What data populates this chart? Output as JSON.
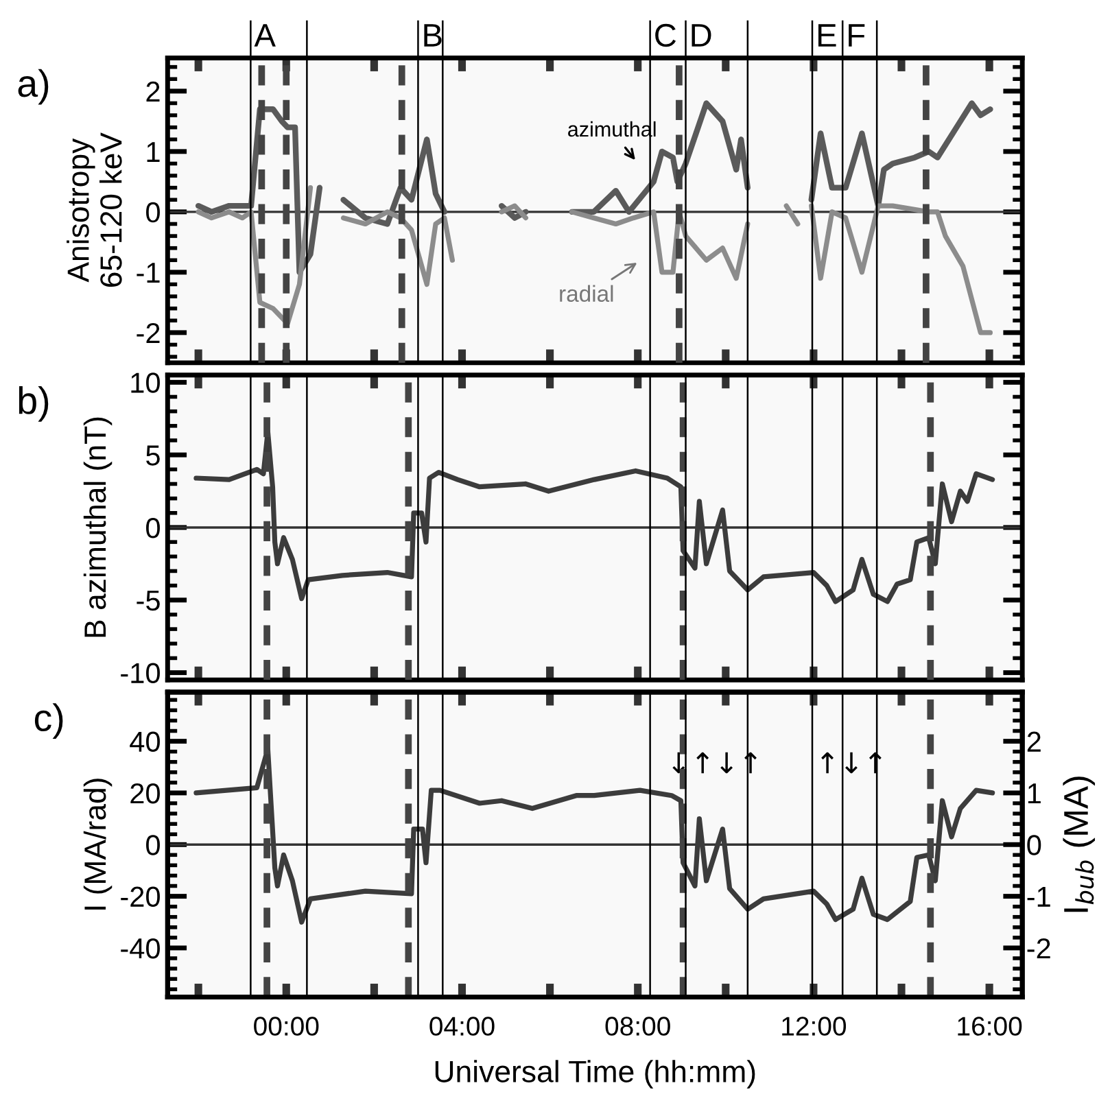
{
  "chart_data": [
    {
      "type": "line",
      "ylabel": "Anisotropy\n65-120 keV",
      "xlim": [
        -2.7,
        16.75
      ],
      "ylim": [
        -2.5,
        2.55
      ],
      "tick_labels": "y",
      "xticks": [
        {
          "value": -2,
          "label": null
        },
        {
          "value": 0,
          "label": null
        },
        {
          "value": 2,
          "label": null
        },
        {
          "value": 4,
          "label": null
        },
        {
          "value": 6,
          "label": null
        },
        {
          "value": 8,
          "label": null
        },
        {
          "value": 10,
          "label": null
        },
        {
          "value": 12,
          "label": null
        },
        {
          "value": 14,
          "label": null
        },
        {
          "value": 16,
          "label": null
        }
      ],
      "yticks": [
        -2,
        -1,
        0,
        1,
        2
      ],
      "series": [
        {
          "color": "#5a5a5a",
          "x": [
            -2.0,
            -1.7,
            -1.3,
            -1.0,
            -0.8,
            -0.6,
            -0.3,
            -0.1,
            0.03,
            0.2,
            0.3,
            0.55,
            0.76,
            1.0,
            1.3,
            1.8,
            2.3,
            2.6,
            2.85,
            3.2,
            3.4,
            3.6,
            4.2,
            4.9,
            5.2,
            5.45,
            6.0,
            6.5,
            7.0,
            7.5,
            7.8,
            8.36,
            8.55,
            8.8,
            8.9,
            9.09,
            9.56,
            9.93,
            10.24,
            10.35,
            10.5,
            11.2,
            11.95,
            12.16,
            12.42,
            12.73,
            13.1,
            13.47,
            13.6,
            13.8,
            14.3,
            14.62,
            14.82,
            15.34,
            15.6,
            15.8,
            16.02
          ],
          "values": [
            0.1,
            0.0,
            0.1,
            0.1,
            0.1,
            1.7,
            1.7,
            1.5,
            1.4,
            1.4,
            -1.0,
            -0.7,
            0.4,
            null,
            0.2,
            -0.1,
            -0.2,
            0.4,
            0.2,
            1.2,
            0.3,
            0.0,
            null,
            0.1,
            -0.1,
            0.0,
            null,
            0.0,
            0.0,
            0.35,
            0.0,
            0.5,
            1.0,
            0.9,
            0.5,
            0.8,
            1.8,
            1.5,
            0.7,
            1.2,
            0.4,
            null,
            0.2,
            1.3,
            0.4,
            0.4,
            1.3,
            0.1,
            0.7,
            0.8,
            0.9,
            1.0,
            0.9,
            1.5,
            1.8,
            1.6,
            1.7
          ]
        },
        {
          "color": "#8c8c8c",
          "x": [
            -2.0,
            -1.7,
            -1.3,
            -1.0,
            -0.8,
            -0.6,
            -0.3,
            0.03,
            0.3,
            0.55,
            1.0,
            1.3,
            1.8,
            2.3,
            2.6,
            2.85,
            3.2,
            3.4,
            3.6,
            3.78,
            4.2,
            4.9,
            5.2,
            5.45,
            6.0,
            6.5,
            7.0,
            7.5,
            7.9,
            8.36,
            8.55,
            8.8,
            8.94,
            9.09,
            9.56,
            9.93,
            10.24,
            10.5,
            11.0,
            11.38,
            11.64,
            11.8,
            11.95,
            12.16,
            12.42,
            12.73,
            13.1,
            13.47,
            13.8,
            14.62,
            14.82,
            15.0,
            15.4,
            15.8,
            16.02
          ],
          "values": [
            0.0,
            -0.1,
            0.0,
            -0.1,
            0.0,
            -1.5,
            -1.6,
            -1.85,
            -1.2,
            0.4,
            null,
            -0.1,
            -0.2,
            0.0,
            -0.1,
            -0.3,
            -1.2,
            -0.2,
            -0.1,
            -0.8,
            null,
            0.0,
            0.1,
            -0.1,
            null,
            0.0,
            -0.1,
            -0.2,
            -0.1,
            0.0,
            -1.0,
            -1.0,
            0.0,
            -0.4,
            -0.8,
            -0.6,
            -1.1,
            -0.2,
            null,
            0.1,
            -0.2,
            null,
            0.1,
            -1.1,
            0.0,
            -0.1,
            -1.0,
            0.1,
            0.1,
            0.0,
            0.0,
            -0.4,
            -0.9,
            -2.0,
            -2.0
          ]
        }
      ],
      "ref_lines": [
        {
          "axis": "y",
          "value": 0,
          "color": "#333333",
          "line_style": "solid"
        },
        {
          "axis": "x",
          "value": -0.56,
          "color": "#444444",
          "line_style": "dashed"
        },
        {
          "axis": "x",
          "value": 0.0,
          "color": "#444444",
          "line_style": "dashed"
        },
        {
          "axis": "x",
          "value": 2.63,
          "color": "#444444",
          "line_style": "dashed"
        },
        {
          "axis": "x",
          "value": 8.94,
          "color": "#444444",
          "line_style": "dashed"
        },
        {
          "axis": "x",
          "value": 14.56,
          "color": "#444444",
          "line_style": "dashed"
        },
        {
          "axis": "x",
          "value": -0.81,
          "label": "A",
          "color": "#000000",
          "line_style": "solid"
        },
        {
          "axis": "x",
          "value": 0.47,
          "color": "#000000",
          "line_style": "solid"
        },
        {
          "axis": "x",
          "value": 3.0,
          "label": "B",
          "color": "#000000",
          "line_style": "solid"
        },
        {
          "axis": "x",
          "value": 3.56,
          "color": "#000000",
          "line_style": "solid"
        },
        {
          "axis": "x",
          "value": 8.28,
          "label": "C",
          "color": "#000000",
          "line_style": "solid"
        },
        {
          "axis": "x",
          "value": 9.09,
          "label": "D",
          "color": "#000000",
          "line_style": "solid"
        },
        {
          "axis": "x",
          "value": 10.5,
          "color": "#000000",
          "line_style": "solid"
        },
        {
          "axis": "x",
          "value": 11.97,
          "label": "E",
          "color": "#000000",
          "line_style": "solid"
        },
        {
          "axis": "x",
          "value": 12.66,
          "label": "F",
          "color": "#000000",
          "line_style": "solid"
        },
        {
          "axis": "x",
          "value": 13.44,
          "color": "#000000",
          "line_style": "solid"
        }
      ],
      "annotations": [
        "a)",
        "azimuthal",
        "radial"
      ]
    },
    {
      "type": "line",
      "ylabel": "B azimuthal (nT)",
      "xlim": [
        -2.7,
        16.75
      ],
      "ylim": [
        -10.5,
        10.5
      ],
      "tick_labels": "y",
      "xticks": [
        {
          "value": -2,
          "label": null
        },
        {
          "value": 0,
          "label": null
        },
        {
          "value": 2,
          "label": null
        },
        {
          "value": 4,
          "label": null
        },
        {
          "value": 6,
          "label": null
        },
        {
          "value": 8,
          "label": null
        },
        {
          "value": 10,
          "label": null
        },
        {
          "value": 12,
          "label": null
        },
        {
          "value": 14,
          "label": null
        },
        {
          "value": 16,
          "label": null
        }
      ],
      "yticks": [
        -10,
        -5,
        0,
        5,
        10
      ],
      "series": [
        {
          "color": "#3c3c3c",
          "x": [
            -2.05,
            -1.3,
            -0.67,
            -0.52,
            -0.42,
            -0.31,
            -0.26,
            -0.2,
            -0.06,
            0.14,
            0.35,
            0.5,
            1.28,
            2.3,
            2.85,
            2.9,
            3.08,
            3.18,
            3.26,
            3.47,
            3.9,
            4.4,
            5.45,
            5.97,
            7.01,
            7.95,
            8.67,
            8.98,
            9.03,
            9.3,
            9.4,
            9.56,
            9.93,
            10.09,
            10.5,
            10.86,
            12.0,
            12.3,
            12.5,
            12.9,
            13.1,
            13.36,
            13.68,
            13.9,
            14.2,
            14.35,
            14.62,
            14.77,
            14.93,
            15.14,
            15.34,
            15.5,
            15.7,
            16.07
          ],
          "values": [
            3.4,
            3.3,
            4.0,
            3.7,
            6.6,
            2.8,
            -1.0,
            -2.5,
            -0.7,
            -2.2,
            -4.9,
            -3.6,
            -3.3,
            -3.1,
            -3.4,
            1.0,
            1.0,
            -1.0,
            3.4,
            3.8,
            3.3,
            2.8,
            3.0,
            2.5,
            3.3,
            3.9,
            3.4,
            2.8,
            -1.6,
            -2.8,
            1.8,
            -2.5,
            1.2,
            -3.0,
            -4.3,
            -3.4,
            -3.1,
            -4.0,
            -5.1,
            -4.3,
            -2.2,
            -4.6,
            -5.1,
            -3.9,
            -3.6,
            -1.0,
            -0.7,
            -2.5,
            3.0,
            0.4,
            2.5,
            1.8,
            3.7,
            3.3
          ]
        }
      ],
      "ref_lines": [
        {
          "axis": "y",
          "value": 0,
          "color": "#333333",
          "line_style": "solid"
        },
        {
          "axis": "x",
          "value": -0.44,
          "color": "#444444",
          "line_style": "dashed"
        },
        {
          "axis": "x",
          "value": 2.78,
          "color": "#444444",
          "line_style": "dashed"
        },
        {
          "axis": "x",
          "value": 9.03,
          "color": "#444444",
          "line_style": "dashed"
        },
        {
          "axis": "x",
          "value": 14.66,
          "color": "#444444",
          "line_style": "dashed"
        },
        {
          "axis": "x",
          "value": -0.81,
          "color": "#000000",
          "line_style": "solid"
        },
        {
          "axis": "x",
          "value": 0.47,
          "color": "#000000",
          "line_style": "solid"
        },
        {
          "axis": "x",
          "value": 3.0,
          "color": "#000000",
          "line_style": "solid"
        },
        {
          "axis": "x",
          "value": 3.56,
          "color": "#000000",
          "line_style": "solid"
        },
        {
          "axis": "x",
          "value": 8.28,
          "color": "#000000",
          "line_style": "solid"
        },
        {
          "axis": "x",
          "value": 9.09,
          "color": "#000000",
          "line_style": "solid"
        },
        {
          "axis": "x",
          "value": 10.5,
          "color": "#000000",
          "line_style": "solid"
        },
        {
          "axis": "x",
          "value": 11.97,
          "color": "#000000",
          "line_style": "solid"
        },
        {
          "axis": "x",
          "value": 12.66,
          "color": "#000000",
          "line_style": "solid"
        },
        {
          "axis": "x",
          "value": 13.44,
          "color": "#000000",
          "line_style": "solid"
        }
      ],
      "annotations": [
        "b)"
      ]
    },
    {
      "type": "line",
      "ylabel": "I (MA/rad)",
      "xlabel": "Universal Time (hh:mm)",
      "y2label": "I$_{bub}$ (MA)",
      "xlim": [
        -2.7,
        16.75
      ],
      "ylim": [
        -59,
        59
      ],
      "y2lim": [
        -2.95,
        2.95
      ],
      "xticks": [
        {
          "value": -2,
          "label": null
        },
        {
          "value": 0,
          "label": "00:00"
        },
        {
          "value": 2,
          "label": null
        },
        {
          "value": 4,
          "label": "04:00"
        },
        {
          "value": 6,
          "label": null
        },
        {
          "value": 8,
          "label": "08:00"
        },
        {
          "value": 10,
          "label": null
        },
        {
          "value": 12,
          "label": "12:00"
        },
        {
          "value": 14,
          "label": null
        },
        {
          "value": 16,
          "label": "16:00"
        }
      ],
      "yticks": [
        -40,
        -20,
        0,
        20,
        40
      ],
      "y2ticks": [
        -2,
        -1,
        0,
        1,
        2
      ],
      "series": [
        {
          "color": "#3c3c3c",
          "x": [
            -2.05,
            -0.67,
            -0.42,
            -0.26,
            -0.2,
            -0.06,
            0.14,
            0.35,
            0.55,
            1.8,
            2.85,
            2.9,
            3.1,
            3.18,
            3.3,
            3.5,
            4.4,
            4.9,
            5.6,
            6.6,
            7.01,
            8.05,
            8.77,
            8.98,
            9.03,
            9.3,
            9.4,
            9.56,
            9.93,
            10.09,
            10.5,
            10.86,
            12.0,
            12.3,
            12.5,
            12.9,
            13.1,
            13.36,
            13.68,
            14.2,
            14.35,
            14.62,
            14.77,
            14.93,
            15.14,
            15.34,
            15.7,
            16.07
          ],
          "values": [
            20,
            22,
            37,
            -9,
            -16,
            -4,
            -14,
            -30,
            -21,
            -18,
            -19,
            6,
            6,
            -7,
            21,
            21,
            16,
            17,
            14,
            19,
            19,
            21,
            19,
            17,
            -7,
            -16,
            10,
            -14,
            6,
            -17,
            -25,
            -21,
            -18,
            -23,
            -29,
            -25,
            -13,
            -27,
            -29,
            -22,
            -5,
            -4,
            -14,
            17,
            3,
            14,
            21,
            20
          ]
        }
      ],
      "ref_lines": [
        {
          "axis": "y",
          "value": 0,
          "color": "#333333",
          "line_style": "solid"
        },
        {
          "axis": "x",
          "value": -0.44,
          "color": "#444444",
          "line_style": "dashed"
        },
        {
          "axis": "x",
          "value": 2.78,
          "color": "#444444",
          "line_style": "dashed"
        },
        {
          "axis": "x",
          "value": 9.03,
          "color": "#444444",
          "line_style": "dashed"
        },
        {
          "axis": "x",
          "value": 14.66,
          "color": "#444444",
          "line_style": "dashed"
        },
        {
          "axis": "x",
          "value": -0.81,
          "color": "#000000",
          "line_style": "solid"
        },
        {
          "axis": "x",
          "value": 0.47,
          "color": "#000000",
          "line_style": "solid"
        },
        {
          "axis": "x",
          "value": 3.0,
          "color": "#000000",
          "line_style": "solid"
        },
        {
          "axis": "x",
          "value": 3.56,
          "color": "#000000",
          "line_style": "solid"
        },
        {
          "axis": "x",
          "value": 8.28,
          "color": "#000000",
          "line_style": "solid"
        },
        {
          "axis": "x",
          "value": 9.09,
          "color": "#000000",
          "line_style": "solid"
        },
        {
          "axis": "x",
          "value": 10.5,
          "color": "#000000",
          "line_style": "solid"
        },
        {
          "axis": "x",
          "value": 11.97,
          "color": "#000000",
          "line_style": "solid"
        },
        {
          "axis": "x",
          "value": 12.66,
          "color": "#000000",
          "line_style": "solid"
        },
        {
          "axis": "x",
          "value": 13.44,
          "color": "#000000",
          "line_style": "solid"
        }
      ],
      "annotations": [
        "c)",
        "↓↑↓↑",
        "↑↓↑"
      ]
    }
  ]
}
